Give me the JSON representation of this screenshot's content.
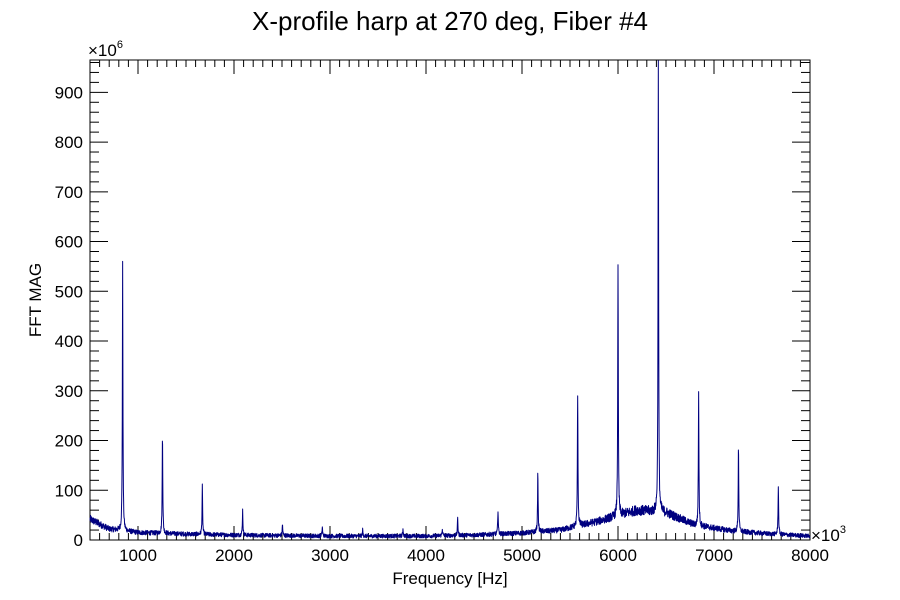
{
  "chart_data": {
    "type": "line",
    "title": "X-profile harp at 270 deg, Fiber #4",
    "xlabel": "Frequency [Hz]",
    "ylabel": "FFT MAG",
    "x_multiplier_label": "×10",
    "x_multiplier_exp": "3",
    "y_multiplier_label": "×10",
    "y_multiplier_exp": "6",
    "xlim": [
      500,
      8000
    ],
    "ylim": [
      0,
      965
    ],
    "x_ticks": [
      1000,
      2000,
      3000,
      4000,
      5000,
      6000,
      7000,
      8000
    ],
    "x_tick_labels": [
      "1000",
      "2000",
      "3000",
      "4000",
      "5000",
      "6000",
      "7000",
      "8000"
    ],
    "y_ticks": [
      0,
      100,
      200,
      300,
      400,
      500,
      600,
      700,
      800,
      900
    ],
    "y_tick_labels": [
      "0",
      "100",
      "200",
      "300",
      "400",
      "500",
      "600",
      "700",
      "800",
      "900"
    ],
    "grid": false,
    "legend": "none",
    "line_color": "#000080",
    "baseline_points": [
      [
        500,
        42
      ],
      [
        700,
        22
      ],
      [
        1000,
        15
      ],
      [
        1500,
        12
      ],
      [
        2000,
        10
      ],
      [
        3000,
        8
      ],
      [
        4000,
        8
      ],
      [
        4500,
        10
      ],
      [
        5000,
        14
      ],
      [
        5400,
        20
      ],
      [
        5800,
        38
      ],
      [
        6200,
        60
      ],
      [
        6500,
        55
      ],
      [
        6800,
        30
      ],
      [
        7200,
        18
      ],
      [
        7600,
        12
      ],
      [
        8000,
        8
      ]
    ],
    "peaks": [
      {
        "x": 840,
        "y": 528
      },
      {
        "x": 1255,
        "y": 202
      },
      {
        "x": 1670,
        "y": 95
      },
      {
        "x": 2090,
        "y": 50
      },
      {
        "x": 2505,
        "y": 22
      },
      {
        "x": 2920,
        "y": 18
      },
      {
        "x": 3340,
        "y": 12
      },
      {
        "x": 3760,
        "y": 15
      },
      {
        "x": 4170,
        "y": 15
      },
      {
        "x": 4330,
        "y": 35
      },
      {
        "x": 4750,
        "y": 50
      },
      {
        "x": 5165,
        "y": 120
      },
      {
        "x": 5580,
        "y": 272
      },
      {
        "x": 6000,
        "y": 516
      },
      {
        "x": 6420,
        "y": 920
      },
      {
        "x": 6840,
        "y": 268
      },
      {
        "x": 7255,
        "y": 172
      },
      {
        "x": 7670,
        "y": 98
      }
    ]
  }
}
